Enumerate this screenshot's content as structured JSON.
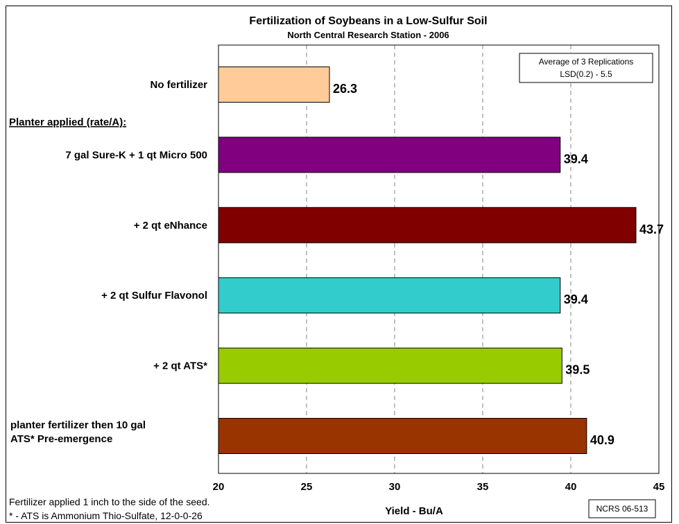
{
  "chart_data": {
    "type": "bar",
    "orientation": "horizontal",
    "title": "Fertilization of Soybeans in a Low-Sulfur Soil",
    "subtitle": "North Central Research Station - 2006",
    "xlabel": "Yield - Bu/A",
    "xlim": [
      20,
      45
    ],
    "xticks": [
      20,
      25,
      30,
      35,
      40,
      45
    ],
    "grid": "vertical dashed",
    "legend_box": {
      "line1": "Average of 3 Replications",
      "line2": "LSD(0.2) - 5.5"
    },
    "group_header": "Planter applied (rate/A):",
    "categories": [
      {
        "label_lines": [
          "No fertilizer"
        ],
        "value": 26.3,
        "value_label": "26.3",
        "color": "#ffcc99"
      },
      {
        "label_lines": [
          "7 gal Sure-K + 1 qt Micro 500"
        ],
        "value": 39.4,
        "value_label": "39.4",
        "color": "#800080"
      },
      {
        "label_lines": [
          "+ 2 qt eNhance"
        ],
        "value": 43.7,
        "value_label": "43.7",
        "color": "#800000"
      },
      {
        "label_lines": [
          "+ 2 qt Sulfur Flavonol"
        ],
        "value": 39.4,
        "value_label": "39.4",
        "color": "#33cccc"
      },
      {
        "label_lines": [
          "+ 2 qt ATS*"
        ],
        "value": 39.5,
        "value_label": "39.5",
        "color": "#99cc00"
      },
      {
        "label_lines": [
          "planter fertilizer then 10 gal",
          "ATS* Pre-emergence"
        ],
        "value": 40.9,
        "value_label": "40.9",
        "color": "#993300"
      }
    ],
    "footnote1": "Fertilizer applied 1 inch to the side of the seed.",
    "footnote2": "* - ATS is Ammonium Thio-Sulfate, 12-0-0-26",
    "code_box": "NCRS 06-513"
  }
}
